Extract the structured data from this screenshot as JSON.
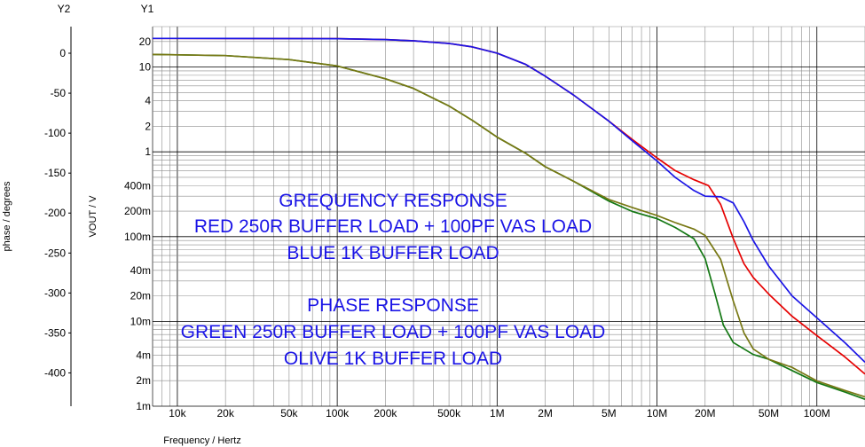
{
  "chart_data": {
    "type": "line",
    "title": "",
    "xlabel": "Frequency / Hertz",
    "xscale": "log",
    "xlim": [
      7000,
      200000000
    ],
    "x_tick_labels": [
      {
        "value": 10000,
        "label": "10k"
      },
      {
        "value": 20000,
        "label": "20k"
      },
      {
        "value": 50000,
        "label": "50k"
      },
      {
        "value": 100000,
        "label": "100k"
      },
      {
        "value": 200000,
        "label": "200k"
      },
      {
        "value": 500000,
        "label": "500k"
      },
      {
        "value": 1000000,
        "label": "1M"
      },
      {
        "value": 2000000,
        "label": "2M"
      },
      {
        "value": 5000000,
        "label": "5M"
      },
      {
        "value": 10000000,
        "label": "10M"
      },
      {
        "value": 20000000,
        "label": "20M"
      },
      {
        "value": 50000000,
        "label": "50M"
      },
      {
        "value": 100000000,
        "label": "100M"
      }
    ],
    "y1": {
      "name": "Y1",
      "label": "VOUT / V",
      "scale": "log",
      "ylim": [
        1,
        30000
      ],
      "tick_labels": [
        {
          "value": 20000,
          "label": "20"
        },
        {
          "value": 10000,
          "label": "10"
        },
        {
          "value": 4000,
          "label": "4"
        },
        {
          "value": 2000,
          "label": "2"
        },
        {
          "value": 1000,
          "label": "1"
        },
        {
          "value": 400,
          "label": "400m"
        },
        {
          "value": 200,
          "label": "200m"
        },
        {
          "value": 100,
          "label": "100m"
        },
        {
          "value": 40,
          "label": "40m"
        },
        {
          "value": 20,
          "label": "20m"
        },
        {
          "value": 10,
          "label": "10m"
        },
        {
          "value": 4,
          "label": "4m"
        },
        {
          "value": 2,
          "label": "2m"
        },
        {
          "value": 1,
          "label": "1m"
        }
      ]
    },
    "y2": {
      "name": "Y2",
      "label": "phase / degrees",
      "scale": "linear",
      "ylim": [
        -435,
        0
      ],
      "tick_labels": [
        {
          "value": 0,
          "label": "0"
        },
        {
          "value": -50,
          "label": "-50"
        },
        {
          "value": -100,
          "label": "-100"
        },
        {
          "value": -150,
          "label": "-150"
        },
        {
          "value": -200,
          "label": "-200"
        },
        {
          "value": -250,
          "label": "-250"
        },
        {
          "value": -300,
          "label": "-300"
        },
        {
          "value": -350,
          "label": "-350"
        },
        {
          "value": -400,
          "label": "-400"
        }
      ]
    },
    "series": [
      {
        "axis": "y1",
        "color": "#e60000",
        "points": [
          [
            7000,
            21800
          ],
          [
            10000,
            21800
          ],
          [
            100000,
            21600
          ],
          [
            200000,
            21100
          ],
          [
            300000,
            20400
          ],
          [
            500000,
            19000
          ],
          [
            700000,
            17300
          ],
          [
            1000000,
            14600
          ],
          [
            1500000,
            10800
          ],
          [
            2000000,
            7800
          ],
          [
            3000000,
            4700
          ],
          [
            5000000,
            2300
          ],
          [
            7000000,
            1400
          ],
          [
            10000000,
            850
          ],
          [
            13000000,
            600
          ],
          [
            17000000,
            470
          ],
          [
            21000000,
            400
          ],
          [
            25000000,
            240
          ],
          [
            30000000,
            95
          ],
          [
            35000000,
            48
          ],
          [
            40000000,
            33
          ],
          [
            50000000,
            21
          ],
          [
            70000000,
            11.5
          ],
          [
            100000000,
            6.8
          ],
          [
            150000000,
            3.8
          ],
          [
            200000000,
            2.4
          ]
        ]
      },
      {
        "axis": "y1",
        "color": "#1a14e6",
        "points": [
          [
            7000,
            21800
          ],
          [
            10000,
            21800
          ],
          [
            100000,
            21600
          ],
          [
            200000,
            21100
          ],
          [
            300000,
            20400
          ],
          [
            500000,
            19000
          ],
          [
            700000,
            17300
          ],
          [
            1000000,
            14600
          ],
          [
            1500000,
            10800
          ],
          [
            2000000,
            7800
          ],
          [
            3000000,
            4700
          ],
          [
            5000000,
            2300
          ],
          [
            7000000,
            1350
          ],
          [
            10000000,
            780
          ],
          [
            13000000,
            500
          ],
          [
            17000000,
            350
          ],
          [
            20000000,
            300
          ],
          [
            25000000,
            295
          ],
          [
            30000000,
            250
          ],
          [
            35000000,
            150
          ],
          [
            40000000,
            90
          ],
          [
            50000000,
            45
          ],
          [
            70000000,
            20
          ],
          [
            100000000,
            11
          ],
          [
            150000000,
            5.6
          ],
          [
            200000000,
            3.3
          ]
        ]
      },
      {
        "axis": "y2",
        "color": "#147814",
        "points": [
          [
            7000,
            -1.5
          ],
          [
            10000,
            -2
          ],
          [
            20000,
            -3
          ],
          [
            50000,
            -8
          ],
          [
            100000,
            -16
          ],
          [
            200000,
            -32
          ],
          [
            300000,
            -44
          ],
          [
            500000,
            -66
          ],
          [
            700000,
            -84
          ],
          [
            1000000,
            -105
          ],
          [
            1500000,
            -125
          ],
          [
            2000000,
            -142
          ],
          [
            3000000,
            -160
          ],
          [
            5000000,
            -185
          ],
          [
            7000000,
            -198
          ],
          [
            10000000,
            -207
          ],
          [
            13000000,
            -218
          ],
          [
            17000000,
            -232
          ],
          [
            20000000,
            -257
          ],
          [
            23000000,
            -300
          ],
          [
            26000000,
            -340
          ],
          [
            30000000,
            -362
          ],
          [
            40000000,
            -377
          ],
          [
            50000000,
            -383
          ],
          [
            70000000,
            -397
          ],
          [
            100000000,
            -412
          ],
          [
            150000000,
            -424
          ],
          [
            200000000,
            -433
          ]
        ]
      },
      {
        "axis": "y2",
        "color": "#787814",
        "points": [
          [
            7000,
            -1.5
          ],
          [
            10000,
            -2
          ],
          [
            20000,
            -3
          ],
          [
            50000,
            -8
          ],
          [
            100000,
            -16
          ],
          [
            200000,
            -32
          ],
          [
            300000,
            -44
          ],
          [
            500000,
            -66
          ],
          [
            700000,
            -84
          ],
          [
            1000000,
            -105
          ],
          [
            1500000,
            -125
          ],
          [
            2000000,
            -142
          ],
          [
            3000000,
            -160
          ],
          [
            5000000,
            -183
          ],
          [
            7000000,
            -193
          ],
          [
            10000000,
            -203
          ],
          [
            13000000,
            -212
          ],
          [
            17000000,
            -220
          ],
          [
            20000000,
            -228
          ],
          [
            25000000,
            -258
          ],
          [
            30000000,
            -310
          ],
          [
            35000000,
            -350
          ],
          [
            40000000,
            -370
          ],
          [
            50000000,
            -383
          ],
          [
            70000000,
            -393
          ],
          [
            100000000,
            -410
          ],
          [
            150000000,
            -422
          ],
          [
            200000000,
            -430
          ]
        ]
      }
    ],
    "annotations": [
      "GREQUENCY RESPONSE",
      "RED 250R BUFFER LOAD + 100PF VAS LOAD",
      "BLUE 1K BUFFER LOAD",
      "PHASE RESPONSE",
      "GREEN 250R BUFFER LOAD + 100PF VAS LOAD",
      "OLIVE 1K BUFFER LOAD"
    ]
  }
}
